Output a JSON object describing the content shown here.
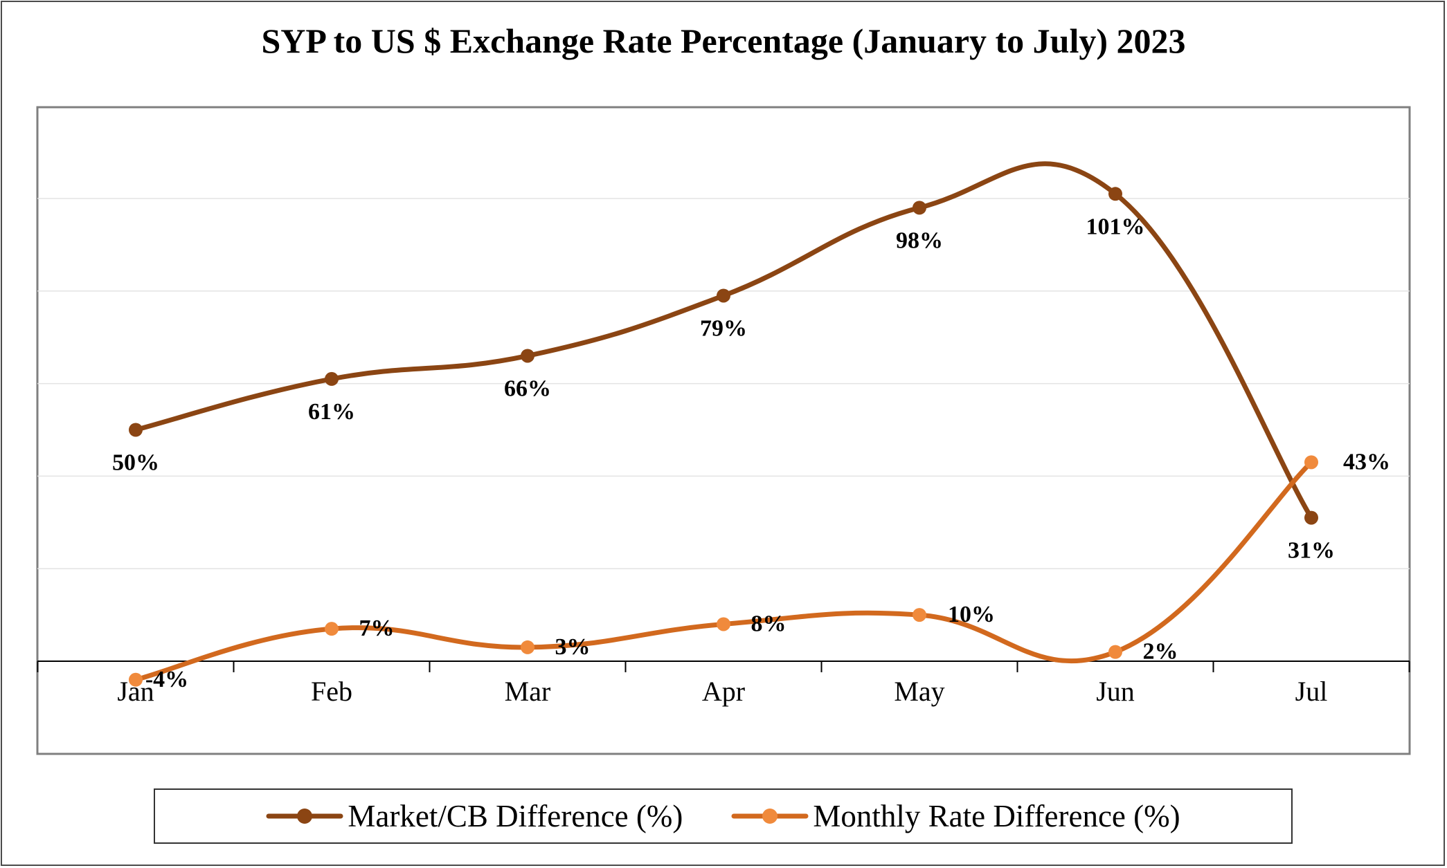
{
  "chart_data": {
    "type": "line",
    "title": "SYP to US $ Exchange Rate Percentage (January to July) 2023",
    "categories": [
      "Jan",
      "Feb",
      "Mar",
      "Apr",
      "May",
      "Jun",
      "Jul"
    ],
    "series": [
      {
        "name": "Market/CB Difference (%)",
        "color": "#8B4513",
        "values": [
          50,
          61,
          66,
          79,
          98,
          101,
          31
        ],
        "labels": [
          "50%",
          "61%",
          "66%",
          "79%",
          "98%",
          "101%",
          "31%"
        ]
      },
      {
        "name": "Monthly Rate Difference (%)",
        "color": "#D2691E",
        "marker_color": "#F08A3C",
        "values": [
          -4,
          7,
          3,
          8,
          10,
          2,
          43
        ],
        "labels": [
          "-4%",
          "7%",
          "3%",
          "8%",
          "10%",
          "2%",
          "43%"
        ]
      }
    ],
    "xlabel": "",
    "ylabel": "",
    "ylim": [
      0,
      120
    ],
    "grid": true,
    "smooth": true,
    "legend_position": "bottom",
    "data_labels": true
  }
}
